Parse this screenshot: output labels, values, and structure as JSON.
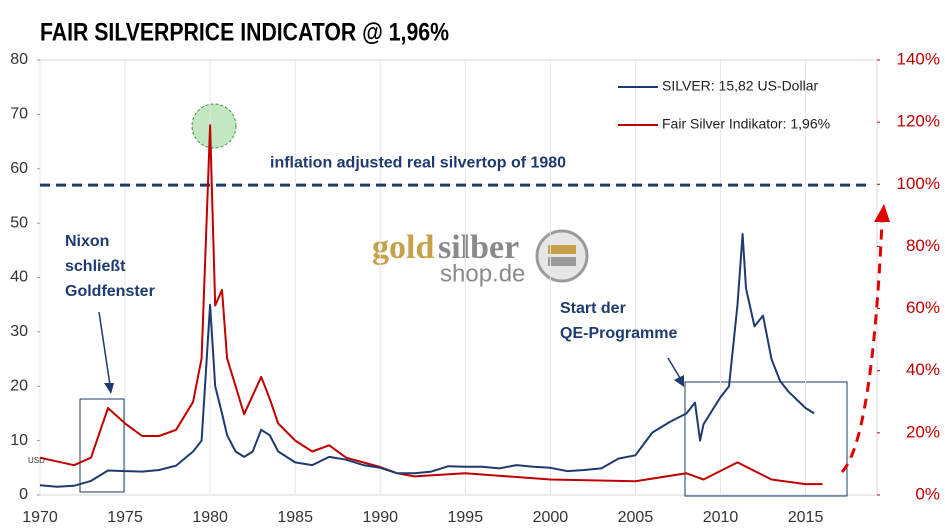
{
  "chart_data": {
    "type": "line",
    "title": "FAIR SILVERPRICE INDICATOR @ 1,96%",
    "xlim": [
      1970,
      2019.2
    ],
    "xticks": [
      1970,
      1975,
      1980,
      1985,
      1990,
      1995,
      2000,
      2005,
      2010,
      2015
    ],
    "ylim": [
      0,
      80
    ],
    "yticks": [
      0,
      10,
      20,
      30,
      40,
      50,
      60,
      70,
      80
    ],
    "y2lim": [
      0,
      140
    ],
    "y2ticks": [
      {
        "value": 0,
        "label": "0%"
      },
      {
        "value": 20,
        "label": "20%"
      },
      {
        "value": 40,
        "label": "40%"
      },
      {
        "value": 60,
        "label": "60%"
      },
      {
        "value": 80,
        "label": "80%"
      },
      {
        "value": 100,
        "label": "100%"
      },
      {
        "value": 120,
        "label": "120%"
      },
      {
        "value": 140,
        "label": "140%"
      }
    ],
    "grid": "x",
    "legend": "top-right",
    "y_unit_label": "USD",
    "series": [
      {
        "name": "SILVER: 15,82 US-Dollar",
        "color": "#1f3a6e",
        "x": [
          1970,
          1971,
          1972,
          1973,
          1974,
          1975,
          1976,
          1977,
          1978,
          1979,
          1979.5,
          1980.0,
          1980.3,
          1980.7,
          1981,
          1981.5,
          1982,
          1982.5,
          1983,
          1983.5,
          1984,
          1985,
          1986,
          1987,
          1988,
          1989,
          1990,
          1991,
          1992,
          1993,
          1994,
          1995,
          1996,
          1997,
          1998,
          1999,
          2000,
          2001,
          2002,
          2003,
          2004,
          2005,
          2006,
          2007,
          2008,
          2008.5,
          2008.8,
          2009,
          2010,
          2010.5,
          2011,
          2011.3,
          2011.5,
          2012,
          2012.5,
          2013,
          2013.5,
          2014,
          2015,
          2015.5
        ],
        "values": [
          1.8,
          1.5,
          1.7,
          2.6,
          4.5,
          4.4,
          4.3,
          4.6,
          5.4,
          8,
          10,
          35,
          20,
          15,
          11,
          8,
          7,
          8,
          12,
          11,
          8,
          6,
          5.5,
          7,
          6.5,
          5.5,
          5,
          4,
          4,
          4.3,
          5.3,
          5.2,
          5.2,
          4.9,
          5.5,
          5.2,
          5,
          4.4,
          4.6,
          4.9,
          6.7,
          7.3,
          11.5,
          13.4,
          15,
          17,
          10,
          13,
          18,
          20,
          35,
          48,
          38,
          31,
          33,
          25,
          21,
          19,
          16,
          15
        ]
      },
      {
        "name": "Fair Silver Indikator: 1,96%",
        "color": "#c00000",
        "axis": "y2",
        "x": [
          1970,
          1972,
          1973,
          1974,
          1975,
          1976,
          1977,
          1978,
          1979,
          1979.5,
          1980.0,
          1980.3,
          1980.7,
          1981,
          1982,
          1983,
          1983.5,
          1984,
          1985,
          1986,
          1987,
          1988,
          1989,
          1990,
          1991,
          1992,
          1995,
          2000,
          2005,
          2008,
          2009,
          2011,
          2013,
          2015,
          2016
        ],
        "values": [
          12,
          9.6,
          12,
          28,
          23,
          19,
          19,
          21,
          30,
          44,
          119,
          61,
          66,
          44,
          26,
          38,
          31,
          23,
          17.5,
          14,
          16,
          12,
          10.5,
          9,
          7,
          6,
          7,
          5,
          4.4,
          7,
          5,
          10.5,
          5,
          3.5,
          3.5
        ]
      }
    ],
    "hline": {
      "value": 57,
      "label": "inflation adjusted real silvertop of  1980"
    },
    "annotations": [
      {
        "lines": [
          "Nixon",
          "schließt",
          "Goldfenster"
        ]
      },
      {
        "lines": [
          "Start der",
          "QE-Programme"
        ]
      }
    ],
    "logo": [
      "gold",
      "silber",
      "shop.de"
    ]
  }
}
